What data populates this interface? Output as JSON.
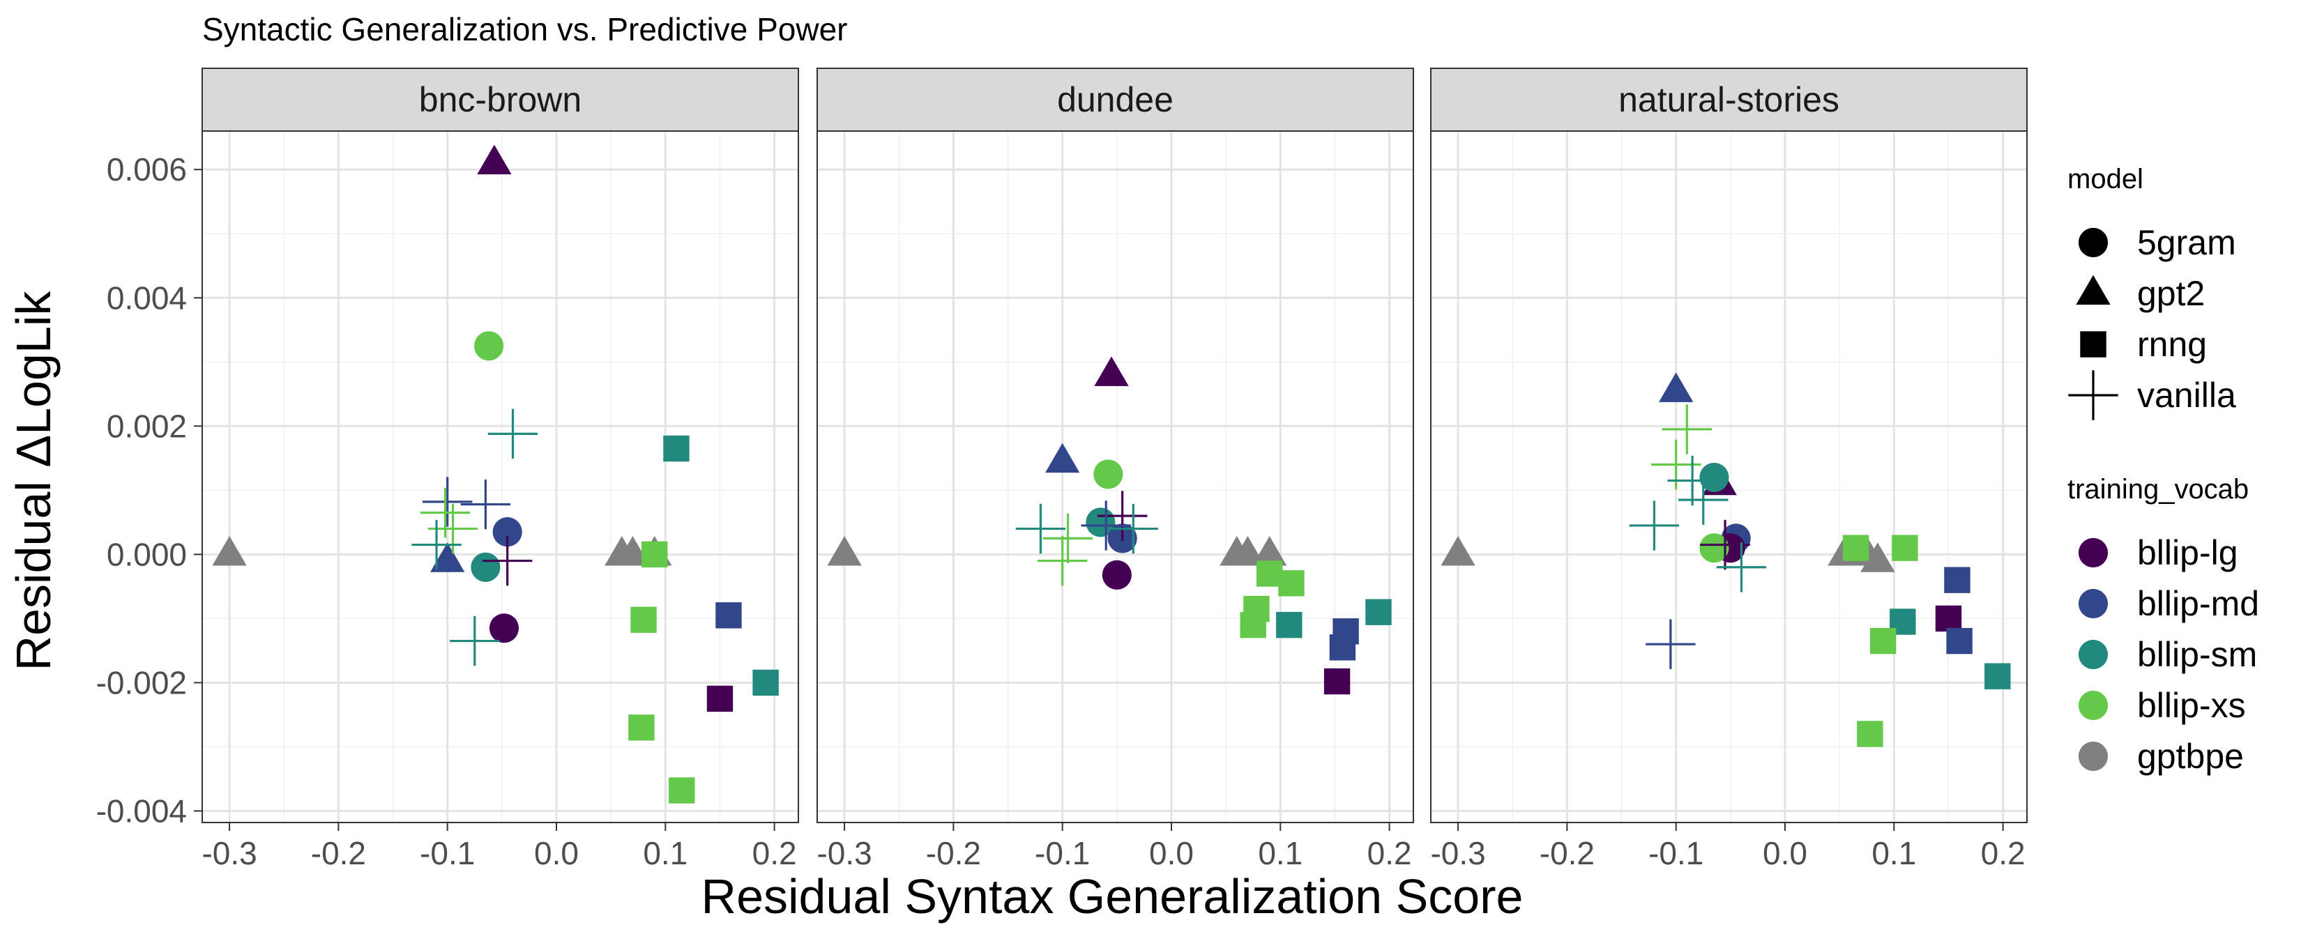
{
  "chart_data": {
    "type": "scatter",
    "title": "Syntactic Generalization vs. Predictive Power",
    "xlabel": "Residual Syntax Generalization Score",
    "ylabel": "Residual ΔLogLik",
    "xlim": [
      -0.325,
      0.222
    ],
    "ylim": [
      -0.00418,
      0.0066
    ],
    "x_ticks": [
      -0.3,
      -0.2,
      -0.1,
      0.0,
      0.1,
      0.2
    ],
    "x_tick_labels": [
      "-0.3",
      "-0.2",
      "-0.1",
      "0.0",
      "0.1",
      "0.2"
    ],
    "y_ticks": [
      -0.004,
      -0.002,
      0.0,
      0.002,
      0.004,
      0.006
    ],
    "y_tick_labels": [
      "-0.004",
      "-0.002",
      "0.000",
      "0.002",
      "0.004",
      "0.006"
    ],
    "grid": true,
    "legend_placement": "right",
    "legends": [
      {
        "title": "model",
        "entries": [
          {
            "label": "5gram",
            "shape": "circle"
          },
          {
            "label": "gpt2",
            "shape": "triangle"
          },
          {
            "label": "rnng",
            "shape": "square"
          },
          {
            "label": "vanilla",
            "shape": "plus"
          }
        ]
      },
      {
        "title": "training_vocab",
        "entries": [
          {
            "label": "bllip-lg",
            "color": "#440154"
          },
          {
            "label": "bllip-md",
            "color": "#31468b"
          },
          {
            "label": "bllip-sm",
            "color": "#21897e"
          },
          {
            "label": "bllip-xs",
            "color": "#64c948"
          },
          {
            "label": "gptbpe",
            "color": "#808080"
          }
        ]
      }
    ],
    "facets": [
      {
        "name": "bnc-brown",
        "points": [
          {
            "x": -0.3,
            "y": 0.0,
            "model": "gpt2",
            "vocab": "gptbpe"
          },
          {
            "x": 0.06,
            "y": 0.0,
            "model": "gpt2",
            "vocab": "gptbpe"
          },
          {
            "x": 0.07,
            "y": 0.0,
            "model": "gpt2",
            "vocab": "gptbpe"
          },
          {
            "x": 0.09,
            "y": 0.0,
            "model": "gpt2",
            "vocab": "gptbpe"
          },
          {
            "x": -0.057,
            "y": 0.0061,
            "model": "gpt2",
            "vocab": "bllip-lg"
          },
          {
            "x": -0.1,
            "y": -0.0001,
            "model": "gpt2",
            "vocab": "bllip-md"
          },
          {
            "x": -0.062,
            "y": 0.00325,
            "model": "5gram",
            "vocab": "bllip-xs"
          },
          {
            "x": -0.045,
            "y": 0.00035,
            "model": "5gram",
            "vocab": "bllip-md"
          },
          {
            "x": -0.065,
            "y": -0.0002,
            "model": "5gram",
            "vocab": "bllip-sm"
          },
          {
            "x": -0.048,
            "y": -0.00115,
            "model": "5gram",
            "vocab": "bllip-lg"
          },
          {
            "x": -0.04,
            "y": 0.00188,
            "model": "vanilla",
            "vocab": "bllip-sm"
          },
          {
            "x": -0.1,
            "y": 0.00082,
            "model": "vanilla",
            "vocab": "bllip-md"
          },
          {
            "x": -0.065,
            "y": 0.00078,
            "model": "vanilla",
            "vocab": "bllip-md"
          },
          {
            "x": -0.102,
            "y": 0.00065,
            "model": "vanilla",
            "vocab": "bllip-xs"
          },
          {
            "x": -0.095,
            "y": 0.0004,
            "model": "vanilla",
            "vocab": "bllip-xs"
          },
          {
            "x": -0.11,
            "y": 0.00015,
            "model": "vanilla",
            "vocab": "bllip-sm"
          },
          {
            "x": -0.045,
            "y": -0.0001,
            "model": "vanilla",
            "vocab": "bllip-lg"
          },
          {
            "x": -0.075,
            "y": -0.00135,
            "model": "vanilla",
            "vocab": "bllip-sm"
          },
          {
            "x": 0.11,
            "y": 0.00165,
            "model": "rnng",
            "vocab": "bllip-sm"
          },
          {
            "x": 0.09,
            "y": 0.0,
            "model": "rnng",
            "vocab": "bllip-xs"
          },
          {
            "x": 0.08,
            "y": -0.00102,
            "model": "rnng",
            "vocab": "bllip-xs"
          },
          {
            "x": 0.158,
            "y": -0.00095,
            "model": "rnng",
            "vocab": "bllip-md"
          },
          {
            "x": 0.192,
            "y": -0.002,
            "model": "rnng",
            "vocab": "bllip-sm"
          },
          {
            "x": 0.15,
            "y": -0.00225,
            "model": "rnng",
            "vocab": "bllip-lg"
          },
          {
            "x": 0.078,
            "y": -0.0027,
            "model": "rnng",
            "vocab": "bllip-xs"
          },
          {
            "x": 0.115,
            "y": -0.00368,
            "model": "rnng",
            "vocab": "bllip-xs"
          }
        ]
      },
      {
        "name": "dundee",
        "points": [
          {
            "x": -0.3,
            "y": 0.0,
            "model": "gpt2",
            "vocab": "gptbpe"
          },
          {
            "x": 0.06,
            "y": 0.0,
            "model": "gpt2",
            "vocab": "gptbpe"
          },
          {
            "x": 0.07,
            "y": 0.0,
            "model": "gpt2",
            "vocab": "gptbpe"
          },
          {
            "x": 0.09,
            "y": 0.0,
            "model": "gpt2",
            "vocab": "gptbpe"
          },
          {
            "x": -0.055,
            "y": 0.0028,
            "model": "gpt2",
            "vocab": "bllip-lg"
          },
          {
            "x": -0.1,
            "y": 0.00145,
            "model": "gpt2",
            "vocab": "bllip-md"
          },
          {
            "x": -0.058,
            "y": 0.00125,
            "model": "5gram",
            "vocab": "bllip-xs"
          },
          {
            "x": -0.065,
            "y": 0.0005,
            "model": "5gram",
            "vocab": "bllip-sm"
          },
          {
            "x": -0.045,
            "y": 0.00025,
            "model": "5gram",
            "vocab": "bllip-md"
          },
          {
            "x": -0.05,
            "y": -0.00032,
            "model": "5gram",
            "vocab": "bllip-lg"
          },
          {
            "x": -0.045,
            "y": 0.0006,
            "model": "vanilla",
            "vocab": "bllip-lg"
          },
          {
            "x": -0.06,
            "y": 0.00045,
            "model": "vanilla",
            "vocab": "bllip-md"
          },
          {
            "x": -0.12,
            "y": 0.0004,
            "model": "vanilla",
            "vocab": "bllip-sm"
          },
          {
            "x": -0.095,
            "y": 0.00025,
            "model": "vanilla",
            "vocab": "bllip-xs"
          },
          {
            "x": -0.1,
            "y": -0.0001,
            "model": "vanilla",
            "vocab": "bllip-xs"
          },
          {
            "x": -0.035,
            "y": 0.0004,
            "model": "vanilla",
            "vocab": "bllip-sm"
          },
          {
            "x": 0.09,
            "y": -0.0003,
            "model": "rnng",
            "vocab": "bllip-xs"
          },
          {
            "x": 0.11,
            "y": -0.00045,
            "model": "rnng",
            "vocab": "bllip-xs"
          },
          {
            "x": 0.078,
            "y": -0.00085,
            "model": "rnng",
            "vocab": "bllip-xs"
          },
          {
            "x": 0.075,
            "y": -0.0011,
            "model": "rnng",
            "vocab": "bllip-xs"
          },
          {
            "x": 0.108,
            "y": -0.0011,
            "model": "rnng",
            "vocab": "bllip-sm"
          },
          {
            "x": 0.16,
            "y": -0.0012,
            "model": "rnng",
            "vocab": "bllip-md"
          },
          {
            "x": 0.157,
            "y": -0.00145,
            "model": "rnng",
            "vocab": "bllip-md"
          },
          {
            "x": 0.19,
            "y": -0.0009,
            "model": "rnng",
            "vocab": "bllip-sm"
          },
          {
            "x": 0.152,
            "y": -0.00198,
            "model": "rnng",
            "vocab": "bllip-lg"
          }
        ]
      },
      {
        "name": "natural-stories",
        "points": [
          {
            "x": -0.3,
            "y": 0.0,
            "model": "gpt2",
            "vocab": "gptbpe"
          },
          {
            "x": 0.055,
            "y": 0.0,
            "model": "gpt2",
            "vocab": "gptbpe"
          },
          {
            "x": 0.075,
            "y": 0.0,
            "model": "gpt2",
            "vocab": "gptbpe"
          },
          {
            "x": 0.085,
            "y": -0.0001,
            "model": "gpt2",
            "vocab": "gptbpe"
          },
          {
            "x": -0.1,
            "y": 0.00255,
            "model": "gpt2",
            "vocab": "bllip-md"
          },
          {
            "x": -0.06,
            "y": 0.0011,
            "model": "gpt2",
            "vocab": "bllip-lg"
          },
          {
            "x": -0.065,
            "y": 0.0012,
            "model": "5gram",
            "vocab": "bllip-sm"
          },
          {
            "x": -0.045,
            "y": 0.00025,
            "model": "5gram",
            "vocab": "bllip-md"
          },
          {
            "x": -0.05,
            "y": 0.0001,
            "model": "5gram",
            "vocab": "bllip-lg"
          },
          {
            "x": -0.065,
            "y": 0.0001,
            "model": "5gram",
            "vocab": "bllip-xs"
          },
          {
            "x": -0.09,
            "y": 0.00195,
            "model": "vanilla",
            "vocab": "bllip-xs"
          },
          {
            "x": -0.1,
            "y": 0.0014,
            "model": "vanilla",
            "vocab": "bllip-xs"
          },
          {
            "x": -0.085,
            "y": 0.00115,
            "model": "vanilla",
            "vocab": "bllip-sm"
          },
          {
            "x": -0.12,
            "y": 0.00045,
            "model": "vanilla",
            "vocab": "bllip-sm"
          },
          {
            "x": -0.075,
            "y": 0.00085,
            "model": "vanilla",
            "vocab": "bllip-sm"
          },
          {
            "x": -0.055,
            "y": 0.00015,
            "model": "vanilla",
            "vocab": "bllip-lg"
          },
          {
            "x": -0.04,
            "y": -0.0002,
            "model": "vanilla",
            "vocab": "bllip-sm"
          },
          {
            "x": -0.105,
            "y": -0.0014,
            "model": "vanilla",
            "vocab": "bllip-md"
          },
          {
            "x": 0.065,
            "y": 0.0001,
            "model": "rnng",
            "vocab": "bllip-xs"
          },
          {
            "x": 0.11,
            "y": 0.0001,
            "model": "rnng",
            "vocab": "bllip-xs"
          },
          {
            "x": 0.158,
            "y": -0.0004,
            "model": "rnng",
            "vocab": "bllip-md"
          },
          {
            "x": 0.108,
            "y": -0.00105,
            "model": "rnng",
            "vocab": "bllip-sm"
          },
          {
            "x": 0.15,
            "y": -0.001,
            "model": "rnng",
            "vocab": "bllip-lg"
          },
          {
            "x": 0.09,
            "y": -0.00135,
            "model": "rnng",
            "vocab": "bllip-xs"
          },
          {
            "x": 0.16,
            "y": -0.00135,
            "model": "rnng",
            "vocab": "bllip-md"
          },
          {
            "x": 0.195,
            "y": -0.0019,
            "model": "rnng",
            "vocab": "bllip-sm"
          },
          {
            "x": 0.078,
            "y": -0.0028,
            "model": "rnng",
            "vocab": "bllip-xs"
          }
        ]
      }
    ]
  }
}
